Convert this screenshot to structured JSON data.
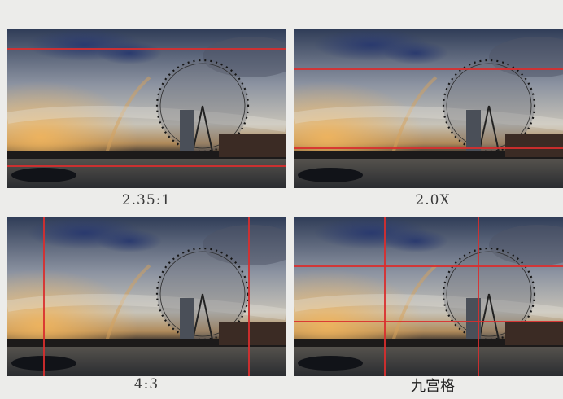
{
  "panels": [
    {
      "caption": "2.35:1",
      "guide_color": "#d92d2d"
    },
    {
      "caption": "2.0X",
      "guide_color": "#d92d2d"
    },
    {
      "caption": "4:3",
      "guide_color": "#d92d2d"
    },
    {
      "caption": "九宫格",
      "guide_color": "#d92d2d"
    }
  ]
}
